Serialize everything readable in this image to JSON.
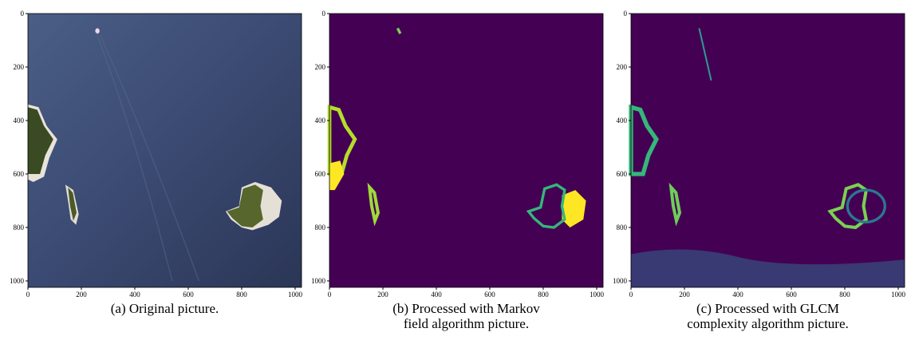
{
  "panels": [
    {
      "caption": [
        "(a) Original picture."
      ],
      "xlim": [
        0,
        1024
      ],
      "ylim": [
        0,
        1024
      ],
      "xticks": [
        0,
        200,
        400,
        600,
        800,
        1000
      ],
      "yticks": [
        0,
        200,
        400,
        600,
        800,
        1000
      ]
    },
    {
      "caption": [
        "(b) Processed with Markov",
        "field algorithm picture."
      ],
      "xlim": [
        0,
        1024
      ],
      "ylim": [
        0,
        1024
      ],
      "xticks": [
        0,
        200,
        400,
        600,
        800,
        1000
      ],
      "yticks": [
        0,
        200,
        400,
        600,
        800,
        1000
      ]
    },
    {
      "caption": [
        "(c) Processed with GLCM",
        "complexity algorithm picture."
      ],
      "xlim": [
        0,
        1024
      ],
      "ylim": [
        0,
        1024
      ],
      "xticks": [
        0,
        200,
        400,
        600,
        800,
        1000
      ],
      "yticks": [
        0,
        200,
        400,
        600,
        800,
        1000
      ]
    }
  ]
}
